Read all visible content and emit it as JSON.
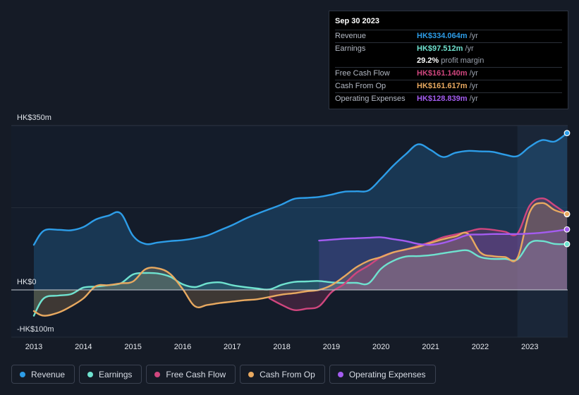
{
  "colors": {
    "revenue": "#2d9de8",
    "earnings": "#6fe2cf",
    "fcf": "#d0467e",
    "cfo": "#e8a960",
    "opex": "#a45cf0"
  },
  "tooltip": {
    "date": "Sep 30 2023",
    "unit": "/yr",
    "rows": [
      {
        "label": "Revenue",
        "value": "HK$334.064m",
        "color": "#2d9de8"
      },
      {
        "label": "Earnings",
        "value": "HK$97.512m",
        "color": "#6fe2cf"
      },
      {
        "label": "",
        "value": "29.2%",
        "extra": "profit margin",
        "color": "#ffffff"
      },
      {
        "label": "Free Cash Flow",
        "value": "HK$161.140m",
        "color": "#d0467e"
      },
      {
        "label": "Cash From Op",
        "value": "HK$161.617m",
        "color": "#e8a960"
      },
      {
        "label": "Operating Expenses",
        "value": "HK$128.839m",
        "color": "#a45cf0"
      }
    ]
  },
  "legend": [
    {
      "label": "Revenue",
      "color": "#2d9de8"
    },
    {
      "label": "Earnings",
      "color": "#6fe2cf"
    },
    {
      "label": "Free Cash Flow",
      "color": "#d0467e"
    },
    {
      "label": "Cash From Op",
      "color": "#e8a960"
    },
    {
      "label": "Operating Expenses",
      "color": "#a45cf0"
    }
  ],
  "chart_data": {
    "type": "area",
    "y_labels": {
      "top": "HK$350m",
      "zero": "HK$0",
      "bottom": "-HK$100m"
    },
    "ylim": [
      -100,
      350
    ],
    "xlim": [
      2013,
      2023.75
    ],
    "x_ticks": [
      "2013",
      "2014",
      "2015",
      "2016",
      "2017",
      "2018",
      "2019",
      "2020",
      "2021",
      "2022",
      "2023"
    ],
    "forecast_start": 2022.75,
    "series": [
      {
        "name": "Revenue",
        "key": "revenue",
        "x": [
          2013,
          2013.2,
          2013.5,
          2013.75,
          2014,
          2014.25,
          2014.5,
          2014.75,
          2015,
          2015.25,
          2015.5,
          2015.75,
          2016,
          2016.25,
          2016.5,
          2016.75,
          2017,
          2017.25,
          2017.5,
          2017.75,
          2018,
          2018.25,
          2018.5,
          2018.75,
          2019,
          2019.25,
          2019.5,
          2019.75,
          2020,
          2020.25,
          2020.5,
          2020.75,
          2021,
          2021.25,
          2021.5,
          2021.75,
          2022,
          2022.25,
          2022.5,
          2022.75,
          2023,
          2023.25,
          2023.5,
          2023.75
        ],
        "values": [
          96,
          126,
          128,
          127,
          134,
          150,
          158,
          163,
          115,
          98,
          101,
          104,
          106,
          110,
          116,
          127,
          138,
          151,
          162,
          172,
          182,
          194,
          196,
          198,
          203,
          209,
          210,
          212,
          237,
          265,
          289,
          310,
          298,
          283,
          292,
          296,
          295,
          294,
          288,
          285,
          305,
          319,
          316,
          334
        ]
      },
      {
        "name": "Earnings",
        "key": "earnings",
        "x": [
          2013,
          2013.2,
          2013.5,
          2013.75,
          2014,
          2014.25,
          2014.5,
          2014.75,
          2015,
          2015.25,
          2015.5,
          2015.75,
          2016,
          2016.25,
          2016.5,
          2016.75,
          2017,
          2017.25,
          2017.5,
          2017.75,
          2018,
          2018.25,
          2018.5,
          2018.75,
          2019,
          2019.25,
          2019.5,
          2019.75,
          2020,
          2020.25,
          2020.5,
          2020.75,
          2021,
          2021.25,
          2021.5,
          2021.75,
          2022,
          2022.25,
          2022.5,
          2022.75,
          2023,
          2023.25,
          2023.5,
          2023.75
        ],
        "values": [
          -55,
          -18,
          -12,
          -9,
          5,
          7,
          10,
          14,
          33,
          36,
          35,
          28,
          12,
          6,
          14,
          16,
          10,
          6,
          3,
          1,
          11,
          17,
          18,
          19,
          16,
          15,
          15,
          14,
          45,
          62,
          71,
          72,
          74,
          78,
          82,
          84,
          70,
          66,
          66,
          65,
          100,
          104,
          98,
          97.5
        ]
      },
      {
        "name": "Free Cash Flow",
        "key": "fcf",
        "x": [
          2017.75,
          2018,
          2018.25,
          2018.5,
          2018.75,
          2019,
          2019.25,
          2019.5,
          2019.75,
          2020,
          2020.25,
          2020.5,
          2020.75,
          2021,
          2021.25,
          2021.5,
          2021.75,
          2022,
          2022.25,
          2022.5,
          2022.75,
          2023,
          2023.25,
          2023.5,
          2023.75
        ],
        "values": [
          -18,
          -32,
          -43,
          -40,
          -35,
          -5,
          12,
          36,
          52,
          70,
          80,
          86,
          94,
          102,
          112,
          118,
          124,
          130,
          128,
          124,
          120,
          180,
          195,
          180,
          161.1
        ]
      },
      {
        "name": "Cash From Op",
        "key": "cfo",
        "x": [
          2013,
          2013.2,
          2013.5,
          2013.75,
          2014,
          2014.25,
          2014.5,
          2014.75,
          2015,
          2015.25,
          2015.5,
          2015.75,
          2016,
          2016.25,
          2016.5,
          2016.75,
          2017,
          2017.25,
          2017.5,
          2017.75,
          2018,
          2018.25,
          2018.5,
          2018.75,
          2019,
          2019.25,
          2019.5,
          2019.75,
          2020,
          2020.25,
          2020.5,
          2020.75,
          2021,
          2021.25,
          2021.5,
          2021.75,
          2022,
          2022.25,
          2022.5,
          2022.75,
          2023,
          2023.25,
          2023.5,
          2023.75
        ],
        "values": [
          -45,
          -55,
          -48,
          -35,
          -18,
          8,
          10,
          14,
          18,
          44,
          46,
          34,
          2,
          -35,
          -32,
          -28,
          -25,
          -22,
          -20,
          -15,
          -10,
          -7,
          -3,
          0,
          10,
          28,
          48,
          62,
          70,
          80,
          86,
          92,
          100,
          108,
          114,
          120,
          80,
          72,
          70,
          68,
          166,
          185,
          170,
          161.6
        ]
      },
      {
        "name": "Operating Expenses",
        "key": "opex",
        "x": [
          2018.75,
          2019,
          2019.25,
          2019.5,
          2019.75,
          2020,
          2020.25,
          2020.5,
          2020.75,
          2021,
          2021.25,
          2021.5,
          2021.75,
          2022,
          2022.25,
          2022.5,
          2022.75,
          2023,
          2023.25,
          2023.5,
          2023.75
        ],
        "values": [
          105,
          107,
          109,
          110,
          111,
          112,
          108,
          104,
          98,
          96,
          100,
          108,
          117,
          118,
          119,
          119,
          119,
          120,
          122,
          125,
          128.8
        ]
      }
    ]
  }
}
